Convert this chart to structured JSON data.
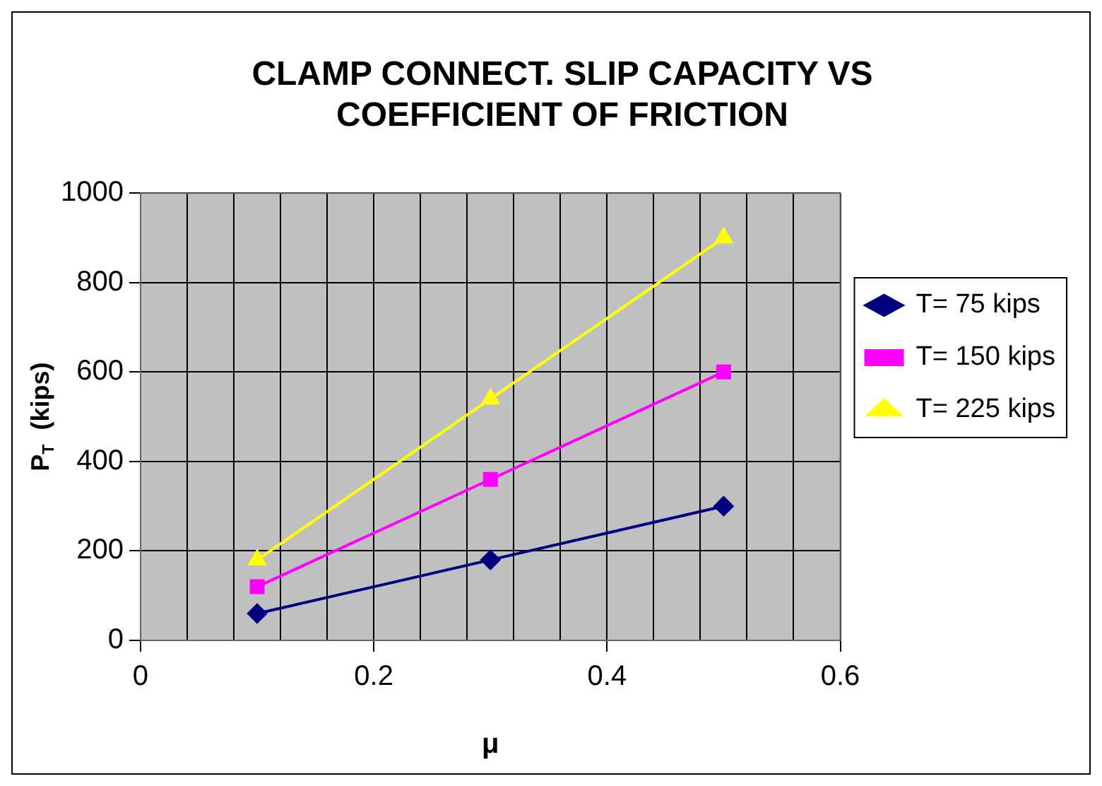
{
  "chart_data": {
    "type": "line",
    "title": "CLAMP CONNECT. SLIP CAPACITY VS COEFFICIENT OF FRICTION",
    "xlabel": "μ",
    "ylabel": "P$_{T}$  (kips)",
    "x": [
      0.1,
      0.3,
      0.5
    ],
    "series": [
      {
        "name": "T= 75 kips",
        "color": "#000080",
        "values": [
          60,
          180,
          300
        ],
        "marker": "diamond"
      },
      {
        "name": "T= 150 kips",
        "color": "#ff00ff",
        "values": [
          120,
          360,
          600
        ],
        "marker": "square"
      },
      {
        "name": "T= 225 kips",
        "color": "#ffff00",
        "values": [
          180,
          540,
          900
        ],
        "marker": "triangle"
      }
    ],
    "xlim": [
      0,
      0.6
    ],
    "xticks": [
      0,
      {
        "value": 0.04,
        "label": null
      },
      {
        "value": 0.08,
        "label": null
      },
      {
        "value": 0.12,
        "label": null
      },
      {
        "value": 0.16,
        "label": null
      },
      0.2,
      {
        "value": 0.24,
        "label": null
      },
      {
        "value": 0.28,
        "label": null
      },
      {
        "value": 0.32,
        "label": null
      },
      {
        "value": 0.36,
        "label": null
      },
      0.4,
      {
        "value": 0.44,
        "label": null
      },
      {
        "value": 0.48,
        "label": null
      },
      {
        "value": 0.52,
        "label": null
      },
      {
        "value": 0.56,
        "label": null
      },
      0.6
    ],
    "ylim": [
      0,
      1000
    ],
    "yticks": [
      0,
      200,
      400,
      600,
      800,
      1000
    ],
    "grid": true,
    "legend": "right",
    "line_style": "solid"
  }
}
